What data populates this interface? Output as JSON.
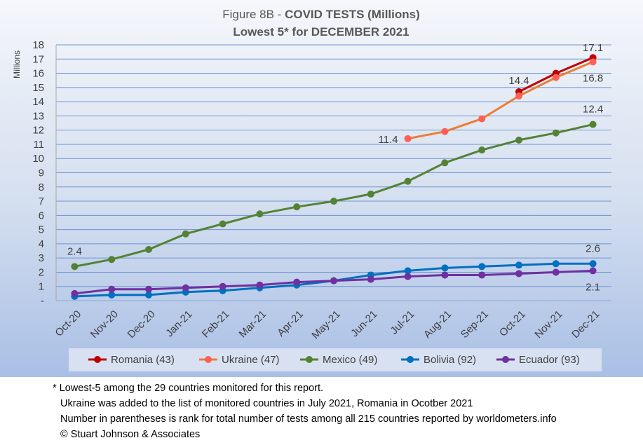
{
  "chart_data": {
    "type": "line",
    "title_prefix": "Figure 8B -",
    "title": "COVID TESTS (Millions)",
    "subtitle": "Lowest 5* for DECEMBER 2021",
    "ylabel": "Millions",
    "ylim": [
      0,
      18
    ],
    "y_ticks": [
      0,
      1,
      2,
      3,
      4,
      5,
      6,
      7,
      8,
      9,
      10,
      11,
      12,
      13,
      14,
      15,
      16,
      17,
      18
    ],
    "y_tick_labels": [
      "-",
      "1",
      "2",
      "3",
      "4",
      "5",
      "6",
      "7",
      "8",
      "9",
      "10",
      "11",
      "12",
      "13",
      "14",
      "15",
      "16",
      "17",
      "18"
    ],
    "categories": [
      "Oct-20",
      "Nov-20",
      "Dec-20",
      "Jan-21",
      "Feb-21",
      "Mar-21",
      "Apr-21",
      "May-21",
      "Jun-21",
      "Jul-21",
      "Aug-21",
      "Sep-21",
      "Oct-21",
      "Nov-21",
      "Dec-21"
    ],
    "series": [
      {
        "name": "Romania (43)",
        "color": "#c00000",
        "marker_color": "#c00000",
        "values": [
          null,
          null,
          null,
          null,
          null,
          null,
          null,
          null,
          null,
          null,
          null,
          null,
          14.7,
          16.0,
          17.1
        ]
      },
      {
        "name": "Ukraine (47)",
        "color": "#ed7d31",
        "marker_color": "#ff5f57",
        "values": [
          null,
          null,
          null,
          null,
          null,
          null,
          null,
          null,
          null,
          11.4,
          11.9,
          12.8,
          14.4,
          15.7,
          16.8
        ]
      },
      {
        "name": "Mexico (49)",
        "color": "#548235",
        "marker_color": "#548235",
        "values": [
          2.4,
          2.9,
          3.6,
          4.7,
          5.4,
          6.1,
          6.6,
          7.0,
          7.5,
          8.4,
          9.7,
          10.6,
          11.3,
          11.8,
          12.4
        ]
      },
      {
        "name": "Bolivia (92)",
        "color": "#0070c0",
        "marker_color": "#0070c0",
        "values": [
          0.3,
          0.4,
          0.4,
          0.6,
          0.7,
          0.9,
          1.1,
          1.4,
          1.8,
          2.1,
          2.3,
          2.4,
          2.5,
          2.6,
          2.6
        ]
      },
      {
        "name": "Ecuador (93)",
        "color": "#7030a0",
        "marker_color": "#7030a0",
        "values": [
          0.5,
          0.8,
          0.8,
          0.9,
          1.0,
          1.1,
          1.3,
          1.4,
          1.5,
          1.7,
          1.8,
          1.8,
          1.9,
          2.0,
          2.1
        ]
      }
    ],
    "data_labels": [
      {
        "text": "2.4",
        "series": "Mexico (49)",
        "category": "Oct-20",
        "position": "above"
      },
      {
        "text": "11.4",
        "series": "Ukraine (47)",
        "category": "Jul-21",
        "position": "left"
      },
      {
        "text": "14.4",
        "series": "Ukraine (47)",
        "category": "Oct-21",
        "position": "above"
      },
      {
        "text": "17.1",
        "series": "Romania (43)",
        "category": "Dec-21",
        "position": "above"
      },
      {
        "text": "16.8",
        "series": "Ukraine (47)",
        "category": "Dec-21",
        "position": "below"
      },
      {
        "text": "12.4",
        "series": "Mexico (49)",
        "category": "Dec-21",
        "position": "above"
      },
      {
        "text": "2.6",
        "series": "Bolivia (92)",
        "category": "Dec-21",
        "position": "above"
      },
      {
        "text": "2.1",
        "series": "Ecuador (93)",
        "category": "Dec-21",
        "position": "below"
      }
    ],
    "grid": true,
    "legend": "bottom"
  },
  "footnotes": [
    "* Lowest-5 among the 29 countries monitored for this report.",
    "Ukraine was added to the list of monitored countries in July 2021, Romania in Ocotber 2021",
    "Number in parentheses is rank for total number of tests among all 215 countries reported by worldometers.info",
    "© Stuart Johnson & Associates"
  ]
}
